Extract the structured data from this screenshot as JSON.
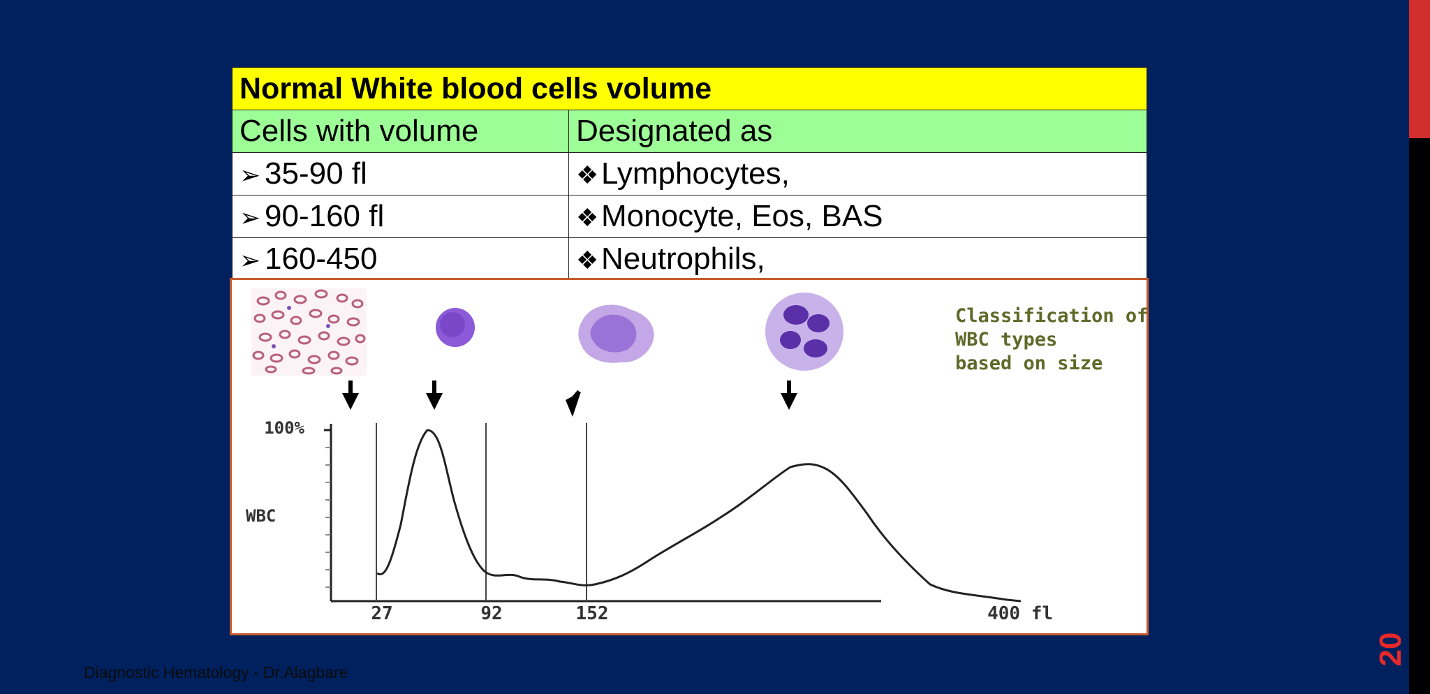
{
  "table": {
    "title": "Normal White blood cells volume",
    "headers": [
      "Cells with volume",
      "Designated as"
    ],
    "rows": [
      {
        "volume": "35-90 fl",
        "designation": "Lymphocytes,"
      },
      {
        "volume": "90-160 fl",
        "designation": "Monocyte, Eos, BAS"
      },
      {
        "volume": "160-450",
        "designation": "Neutrophils,"
      }
    ],
    "volume_bullet": "➢",
    "designation_bullet": "❖"
  },
  "figure": {
    "caption_lines": [
      "Classification of",
      "WBC types",
      "based on size"
    ],
    "y_axis_label": "WBC",
    "y_max_label": "100%",
    "x_tick_labels": [
      "27",
      "92",
      "152",
      "400 fl"
    ]
  },
  "footer": "Diagnostic Hematology - Dr.Alagbare",
  "page_number": "20",
  "colors": {
    "background": "#00215e",
    "title_row": "#ffff00",
    "header_row": "#9dfd97",
    "page_number": "#e8292a",
    "figure_border": "#c75b2e",
    "caption_text": "#5f6a2a"
  }
}
